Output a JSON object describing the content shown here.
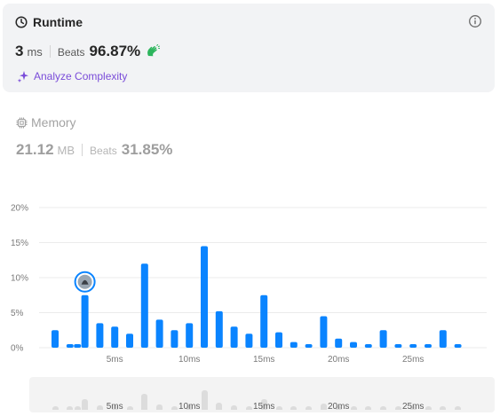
{
  "runtime": {
    "title": "Runtime",
    "value": "3",
    "unit": "ms",
    "beats_label": "Beats",
    "beats_pct": "96.87%",
    "analyze_label": "Analyze Complexity",
    "icons": [
      "clock-icon",
      "info-icon",
      "clapping-hands-icon",
      "sparkle-icon"
    ],
    "accent_color": "#7a4cd9",
    "hands_color": "#2db55d"
  },
  "memory": {
    "title": "Memory",
    "value": "21.12",
    "unit": "MB",
    "beats_label": "Beats",
    "beats_pct": "31.85%",
    "icon": "chip-icon"
  },
  "chart_data": {
    "type": "bar",
    "x_ticks": [
      "5ms",
      "10ms",
      "15ms",
      "20ms",
      "25ms"
    ],
    "x_tick_values": [
      5,
      10,
      15,
      20,
      25
    ],
    "y_ticks": [
      "0%",
      "5%",
      "10%",
      "15%",
      "20%"
    ],
    "ylim": [
      0,
      20
    ],
    "x": [
      1,
      2,
      2.5,
      3,
      4,
      5,
      6,
      7,
      8,
      9,
      10,
      11,
      12,
      13,
      14,
      15,
      16,
      17,
      18,
      19,
      20,
      21,
      22,
      23,
      24,
      25,
      26,
      27,
      28
    ],
    "values": [
      2.5,
      0.5,
      0.5,
      7.5,
      3.5,
      3.0,
      2.0,
      12.0,
      4.0,
      2.5,
      3.5,
      14.5,
      5.2,
      3.0,
      2.0,
      7.5,
      2.2,
      0.8,
      0.5,
      4.5,
      1.3,
      0.8,
      0.5,
      2.5,
      0.5,
      0.5,
      0.5,
      2.5,
      0.5
    ],
    "highlight_x": 3,
    "highlight_label": "avatar",
    "bar_color": "#0a84ff",
    "grid": true
  },
  "navigator": {
    "x_ticks": [
      "5ms",
      "10ms",
      "15ms",
      "20ms",
      "25ms"
    ]
  }
}
